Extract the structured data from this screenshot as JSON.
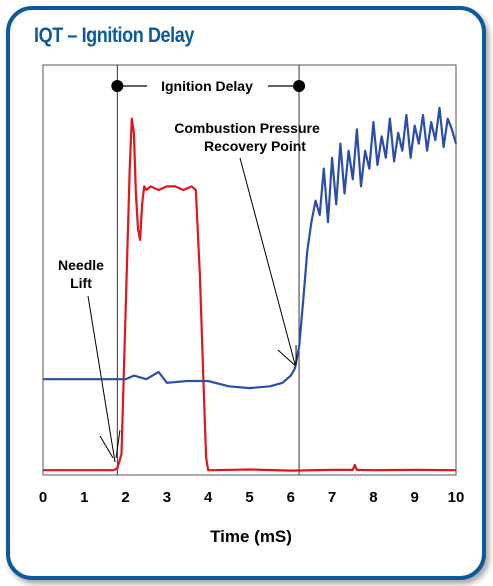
{
  "header": {
    "title": "IQT – Ignition Delay"
  },
  "colors": {
    "frame": "#0a5a9c",
    "needle_lift": "#e0161b",
    "pressure": "#2b4ea6",
    "annotation": "#000000"
  },
  "chart_data": {
    "type": "line",
    "title": "IQT – Ignition Delay",
    "xlabel": "Time (mS)",
    "ylabel": "",
    "xlim": [
      0,
      10
    ],
    "ylim": [
      0,
      1
    ],
    "x_ticks": [
      "0",
      "1",
      "2",
      "3",
      "4",
      "5",
      "6",
      "7",
      "8",
      "9",
      "10"
    ],
    "grid": false,
    "series": [
      {
        "key": "needle",
        "color": "#e0161b",
        "x": [
          0,
          1.7,
          1.8,
          1.9,
          2.0,
          2.1,
          2.15,
          2.2,
          2.25,
          2.3,
          2.35,
          2.4,
          2.45,
          2.5,
          2.6,
          2.8,
          3.0,
          3.2,
          3.4,
          3.6,
          3.7,
          3.8,
          3.9,
          3.95,
          4.0,
          4.1,
          5.0,
          6.0,
          7.0,
          7.5,
          7.55,
          7.6,
          8.0,
          9.0,
          10.0
        ],
        "y": [
          0.005,
          0.005,
          0.01,
          0.05,
          0.45,
          0.85,
          0.99,
          0.95,
          0.78,
          0.68,
          0.65,
          0.75,
          0.8,
          0.79,
          0.8,
          0.79,
          0.8,
          0.8,
          0.79,
          0.8,
          0.79,
          0.55,
          0.2,
          0.04,
          0.005,
          0.005,
          0.007,
          0.004,
          0.006,
          0.006,
          0.02,
          0.006,
          0.005,
          0.006,
          0.005
        ]
      },
      {
        "key": "pressure",
        "color": "#2b4ea6",
        "x": [
          0,
          1.0,
          2.0,
          2.2,
          2.5,
          2.8,
          3.0,
          3.5,
          4.0,
          4.5,
          5.0,
          5.5,
          5.8,
          6.0,
          6.1,
          6.2,
          6.3,
          6.4,
          6.5,
          6.6,
          6.7,
          6.8,
          6.9,
          7.0,
          7.1,
          7.2,
          7.3,
          7.4,
          7.5,
          7.6,
          7.7,
          7.8,
          7.9,
          8.0,
          8.1,
          8.2,
          8.3,
          8.4,
          8.5,
          8.6,
          8.7,
          8.8,
          8.9,
          9.0,
          9.1,
          9.2,
          9.3,
          9.4,
          9.5,
          9.6,
          9.7,
          9.8,
          9.9,
          10.0
        ],
        "y": [
          0.26,
          0.26,
          0.26,
          0.27,
          0.26,
          0.28,
          0.25,
          0.255,
          0.255,
          0.24,
          0.235,
          0.24,
          0.25,
          0.27,
          0.29,
          0.35,
          0.48,
          0.62,
          0.7,
          0.76,
          0.72,
          0.85,
          0.7,
          0.88,
          0.75,
          0.92,
          0.78,
          0.9,
          0.82,
          0.96,
          0.8,
          0.9,
          0.85,
          0.98,
          0.86,
          0.94,
          0.88,
          0.99,
          0.87,
          0.95,
          0.9,
          1.0,
          0.88,
          0.97,
          0.92,
          1.0,
          0.9,
          0.98,
          0.93,
          1.02,
          0.91,
          0.99,
          0.96,
          0.92
        ]
      }
    ],
    "annotations": {
      "ignition_delay": "Ignition Delay",
      "needle_lift_line1": "Needle",
      "needle_lift_line2": "Lift",
      "recovery_line1": "Combustion Pressure",
      "recovery_line2": "Recovery Point"
    },
    "markers": {
      "needle_lift_time": 1.8,
      "recovery_time": 6.2
    }
  }
}
